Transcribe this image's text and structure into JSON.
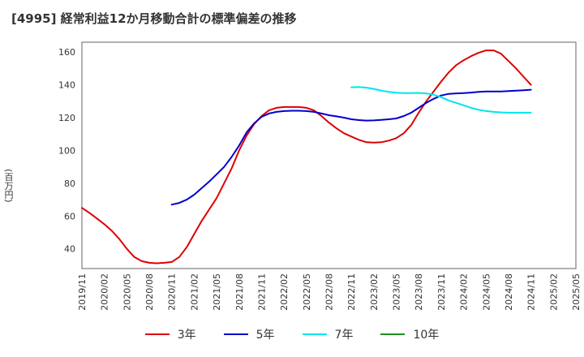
{
  "header": {
    "title": "[4995]  経常利益12か月移動合計の標準偏差の推移",
    "ylabel": "(百万円)"
  },
  "chart_data": {
    "type": "line",
    "title": "[4995]  経常利益12か月移動合計の標準偏差の推移",
    "xlabel": "",
    "ylabel": "(百万円)",
    "ylim": [
      28,
      166
    ],
    "yticks": [
      40,
      60,
      80,
      100,
      120,
      140,
      160
    ],
    "xlim": [
      "2019/11",
      "2025/05"
    ],
    "xtick_labels": [
      "2019/11",
      "2020/02",
      "2020/05",
      "2020/08",
      "2020/11",
      "2021/02",
      "2021/05",
      "2021/08",
      "2021/11",
      "2022/02",
      "2022/05",
      "2022/08",
      "2022/11",
      "2023/02",
      "2023/05",
      "2023/08",
      "2023/11",
      "2024/02",
      "2024/05",
      "2024/08",
      "2024/11",
      "2025/02",
      "2025/05"
    ],
    "grid": true,
    "legend_position": "bottom",
    "series": [
      {
        "name": "3年",
        "color": "#dd0000",
        "points": [
          [
            "2019/11",
            65
          ],
          [
            "2019/12",
            62
          ],
          [
            "2020/01",
            58.5
          ],
          [
            "2020/02",
            55
          ],
          [
            "2020/03",
            51
          ],
          [
            "2020/04",
            46
          ],
          [
            "2020/05",
            40
          ],
          [
            "2020/06",
            35
          ],
          [
            "2020/07",
            32.5
          ],
          [
            "2020/08",
            31.5
          ],
          [
            "2020/09",
            31.2
          ],
          [
            "2020/10",
            31.5
          ],
          [
            "2020/11",
            32
          ],
          [
            "2020/12",
            35
          ],
          [
            "2021/01",
            41
          ],
          [
            "2021/02",
            49
          ],
          [
            "2021/03",
            57
          ],
          [
            "2021/04",
            64
          ],
          [
            "2021/05",
            71
          ],
          [
            "2021/06",
            80
          ],
          [
            "2021/07",
            89
          ],
          [
            "2021/08",
            100
          ],
          [
            "2021/09",
            109
          ],
          [
            "2021/10",
            116
          ],
          [
            "2021/11",
            121
          ],
          [
            "2021/12",
            124.5
          ],
          [
            "2022/01",
            126
          ],
          [
            "2022/02",
            126.5
          ],
          [
            "2022/03",
            126.5
          ],
          [
            "2022/04",
            126.5
          ],
          [
            "2022/05",
            126
          ],
          [
            "2022/06",
            124.5
          ],
          [
            "2022/07",
            121
          ],
          [
            "2022/08",
            117
          ],
          [
            "2022/09",
            113.5
          ],
          [
            "2022/10",
            110.5
          ],
          [
            "2022/11",
            108.5
          ],
          [
            "2022/12",
            106.5
          ],
          [
            "2023/01",
            105
          ],
          [
            "2023/02",
            104.8
          ],
          [
            "2023/03",
            105
          ],
          [
            "2023/04",
            106
          ],
          [
            "2023/05",
            107.5
          ],
          [
            "2023/06",
            110.5
          ],
          [
            "2023/07",
            115.5
          ],
          [
            "2023/08",
            123
          ],
          [
            "2023/09",
            130
          ],
          [
            "2023/10",
            136
          ],
          [
            "2023/11",
            142
          ],
          [
            "2023/12",
            147.5
          ],
          [
            "2024/01",
            152
          ],
          [
            "2024/02",
            155
          ],
          [
            "2024/03",
            157.5
          ],
          [
            "2024/04",
            159.5
          ],
          [
            "2024/05",
            161
          ],
          [
            "2024/06",
            161
          ],
          [
            "2024/07",
            159
          ],
          [
            "2024/08",
            154.5
          ],
          [
            "2024/09",
            150
          ],
          [
            "2024/10",
            145
          ],
          [
            "2024/11",
            140
          ]
        ]
      },
      {
        "name": "5年",
        "color": "#0000cc",
        "points": [
          [
            "2020/11",
            67
          ],
          [
            "2020/12",
            68
          ],
          [
            "2021/01",
            70
          ],
          [
            "2021/02",
            73
          ],
          [
            "2021/03",
            77
          ],
          [
            "2021/04",
            81
          ],
          [
            "2021/05",
            85.5
          ],
          [
            "2021/06",
            90
          ],
          [
            "2021/07",
            96
          ],
          [
            "2021/08",
            103
          ],
          [
            "2021/09",
            111
          ],
          [
            "2021/10",
            116.5
          ],
          [
            "2021/11",
            120.5
          ],
          [
            "2021/12",
            122.5
          ],
          [
            "2022/01",
            123.5
          ],
          [
            "2022/02",
            124
          ],
          [
            "2022/03",
            124.2
          ],
          [
            "2022/04",
            124.2
          ],
          [
            "2022/05",
            124
          ],
          [
            "2022/06",
            123.5
          ],
          [
            "2022/07",
            122.5
          ],
          [
            "2022/08",
            121.5
          ],
          [
            "2022/09",
            120.8
          ],
          [
            "2022/10",
            120
          ],
          [
            "2022/11",
            119
          ],
          [
            "2022/12",
            118.5
          ],
          [
            "2023/01",
            118.2
          ],
          [
            "2023/02",
            118.3
          ],
          [
            "2023/03",
            118.6
          ],
          [
            "2023/04",
            119
          ],
          [
            "2023/05",
            119.5
          ],
          [
            "2023/06",
            121
          ],
          [
            "2023/07",
            123
          ],
          [
            "2023/08",
            126
          ],
          [
            "2023/09",
            129
          ],
          [
            "2023/10",
            131.5
          ],
          [
            "2023/11",
            133.5
          ],
          [
            "2023/12",
            134.5
          ],
          [
            "2024/01",
            134.8
          ],
          [
            "2024/02",
            135
          ],
          [
            "2024/03",
            135.3
          ],
          [
            "2024/04",
            135.7
          ],
          [
            "2024/05",
            136
          ],
          [
            "2024/06",
            136
          ],
          [
            "2024/07",
            136
          ],
          [
            "2024/08",
            136.2
          ],
          [
            "2024/09",
            136.4
          ],
          [
            "2024/10",
            136.7
          ],
          [
            "2024/11",
            137
          ]
        ]
      },
      {
        "name": "7年",
        "color": "#00e5ee",
        "points": [
          [
            "2022/11",
            138.5
          ],
          [
            "2022/12",
            138.7
          ],
          [
            "2023/01",
            138.3
          ],
          [
            "2023/02",
            137.5
          ],
          [
            "2023/03",
            136.5
          ],
          [
            "2023/04",
            135.7
          ],
          [
            "2023/05",
            135.2
          ],
          [
            "2023/06",
            135
          ],
          [
            "2023/07",
            135
          ],
          [
            "2023/08",
            135.1
          ],
          [
            "2023/09",
            134.8
          ],
          [
            "2023/10",
            134
          ],
          [
            "2023/11",
            132.5
          ],
          [
            "2023/12",
            130.5
          ],
          [
            "2024/01",
            129
          ],
          [
            "2024/02",
            127.5
          ],
          [
            "2024/03",
            126
          ],
          [
            "2024/04",
            124.8
          ],
          [
            "2024/05",
            124
          ],
          [
            "2024/06",
            123.5
          ],
          [
            "2024/07",
            123.2
          ],
          [
            "2024/08",
            123
          ],
          [
            "2024/09",
            123
          ],
          [
            "2024/10",
            123
          ],
          [
            "2024/11",
            123
          ]
        ]
      },
      {
        "name": "10年",
        "color": "#228b22",
        "points": []
      }
    ]
  }
}
